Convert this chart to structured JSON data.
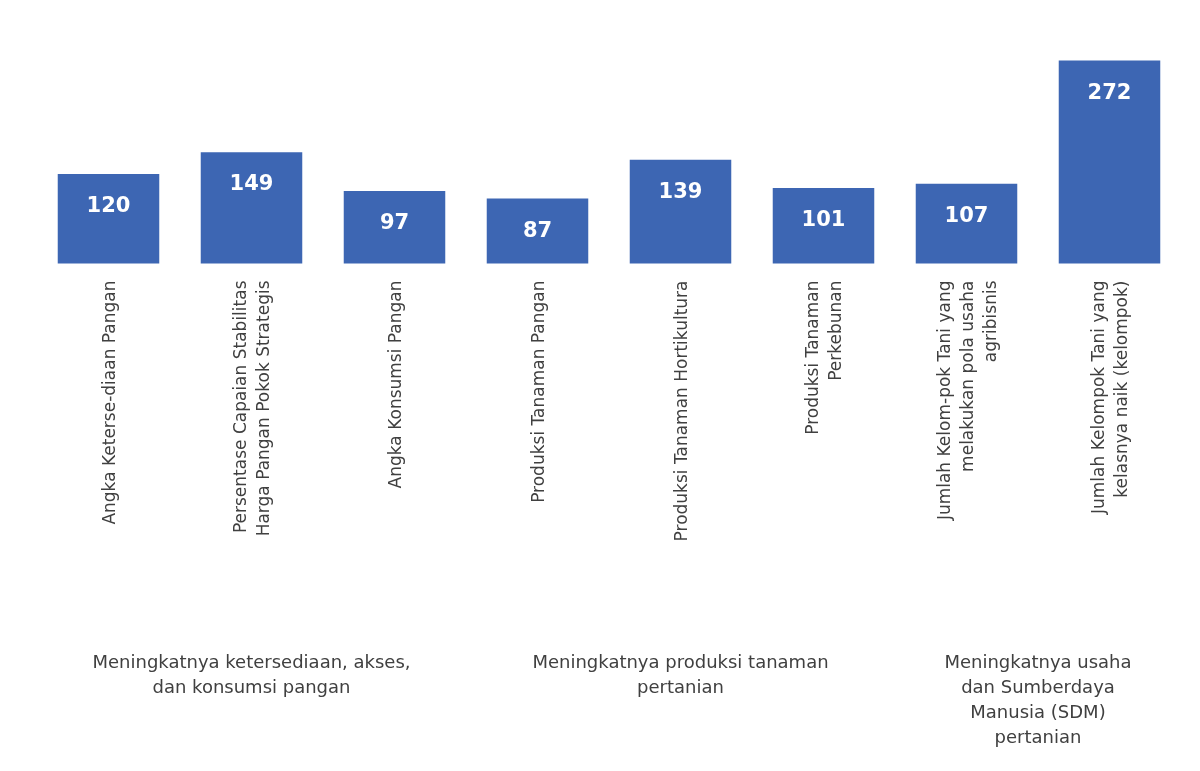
{
  "chart_data": {
    "type": "bar",
    "categories": [
      "Angka Keterse-diaan Pangan",
      "Persentase Capaian Stabilitas\nHarga Pangan Pokok Strategis",
      "Angka Konsumsi Pangan",
      "Produksi Tanaman Pangan",
      "Produksi Tanaman Hortikultura",
      "Produksi Tanaman\nPerkebunan",
      "Jumlah Kelom-pok Tani yang\nmelakukan pola usaha\nagribisnis",
      "Jumlah Kelompok Tani yang\nkelasnya naik (kelompok)"
    ],
    "values": [
      120,
      149,
      97,
      87,
      139,
      101,
      107,
      272
    ],
    "color": "#3d66b3",
    "data_labels": true,
    "annotations": [
      "Meningkatnya ketersediaan, akses,\ndan konsumsi pangan",
      "Meningkatnya produksi tanaman\npertanian",
      "Meningkatnya usaha\ndan Sumberdaya\nManusia (SDM)\npertanian"
    ]
  }
}
